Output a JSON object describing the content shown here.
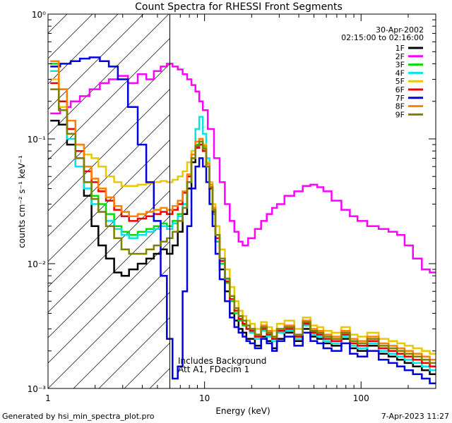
{
  "chart_data": {
    "type": "line",
    "title": "Count Spectra for RHESSI Front Segments",
    "xlabel": "Energy (keV)",
    "ylabel": "counts cm⁻² s⁻¹ keV⁻¹",
    "xscale": "log",
    "yscale": "log",
    "xlim": [
      1,
      300
    ],
    "ylim": [
      0.001,
      1
    ],
    "x_ticks": [
      {
        "value": 1,
        "label": "1"
      },
      {
        "value": 10,
        "label": "10"
      },
      {
        "value": 100,
        "label": "100"
      }
    ],
    "y_ticks": [
      {
        "value": 0.001,
        "label": "10⁻³"
      },
      {
        "value": 0.01,
        "label": "10⁻²"
      },
      {
        "value": 0.1,
        "label": "10⁻¹"
      },
      {
        "value": 1,
        "label": "10⁰"
      }
    ],
    "annotations": {
      "date": "30-Apr-2002",
      "time_range": "02:15:00 to 02:16:00",
      "background_note": "Includes Background",
      "atten_note": "Att A1, FDecim 1",
      "threshold_energy_keV": 6,
      "hatch_xlim": [
        1,
        6
      ]
    },
    "legend": {
      "placement": "top-right"
    },
    "series": [
      {
        "name": "1F",
        "color": "#000000",
        "x": [
          1.1,
          1.25,
          1.4,
          1.6,
          1.8,
          2.0,
          2.2,
          2.5,
          2.8,
          3.1,
          3.5,
          4.0,
          4.5,
          5.0,
          5.5,
          6.0,
          6.5,
          7.0,
          7.5,
          8.0,
          8.5,
          9.0,
          9.5,
          10.0,
          10.5,
          11.0,
          11.5,
          12.0,
          13.0,
          14.0,
          15.0,
          16.0,
          17.0,
          18.0,
          19.0,
          20.0,
          22,
          24,
          26,
          28,
          30,
          35,
          40,
          45,
          50,
          55,
          60,
          70,
          80,
          90,
          100,
          120,
          140,
          160,
          180,
          200,
          230,
          260,
          290
        ],
        "y": [
          0.14,
          0.13,
          0.09,
          0.06,
          0.035,
          0.02,
          0.014,
          0.011,
          0.0085,
          0.008,
          0.009,
          0.01,
          0.011,
          0.012,
          0.013,
          0.012,
          0.014,
          0.018,
          0.025,
          0.04,
          0.065,
          0.085,
          0.09,
          0.08,
          0.06,
          0.04,
          0.025,
          0.015,
          0.009,
          0.006,
          0.004,
          0.0035,
          0.003,
          0.0028,
          0.0025,
          0.0025,
          0.0022,
          0.0026,
          0.0024,
          0.0021,
          0.0025,
          0.0028,
          0.0024,
          0.003,
          0.0026,
          0.0025,
          0.0023,
          0.0022,
          0.0025,
          0.0021,
          0.002,
          0.0022,
          0.0019,
          0.0018,
          0.0017,
          0.0016,
          0.0015,
          0.0014,
          0.0013
        ]
      },
      {
        "name": "2F",
        "color": "#ff00ff",
        "x": [
          1.1,
          1.3,
          1.5,
          1.7,
          2.0,
          2.3,
          2.6,
          3.0,
          3.5,
          4.0,
          4.5,
          5.0,
          5.5,
          6.0,
          6.5,
          7.0,
          7.5,
          8.0,
          8.5,
          9.0,
          9.5,
          10.0,
          11.0,
          12.0,
          13.0,
          14.0,
          15.0,
          16.0,
          17.0,
          18.0,
          20.0,
          22,
          24,
          26,
          28,
          30,
          35,
          40,
          45,
          50,
          55,
          60,
          70,
          80,
          90,
          100,
          120,
          140,
          160,
          180,
          200,
          230,
          260,
          290
        ],
        "y": [
          0.16,
          0.18,
          0.2,
          0.22,
          0.25,
          0.28,
          0.3,
          0.32,
          0.28,
          0.33,
          0.3,
          0.35,
          0.38,
          0.4,
          0.38,
          0.36,
          0.33,
          0.3,
          0.27,
          0.24,
          0.2,
          0.17,
          0.12,
          0.07,
          0.045,
          0.03,
          0.022,
          0.018,
          0.015,
          0.014,
          0.016,
          0.019,
          0.022,
          0.025,
          0.028,
          0.03,
          0.035,
          0.038,
          0.042,
          0.043,
          0.041,
          0.038,
          0.032,
          0.027,
          0.024,
          0.022,
          0.02,
          0.019,
          0.018,
          0.017,
          0.014,
          0.011,
          0.009,
          0.0085
        ]
      },
      {
        "name": "3F",
        "color": "#00dd00",
        "x": [
          1.1,
          1.25,
          1.4,
          1.6,
          1.8,
          2.0,
          2.2,
          2.5,
          2.8,
          3.1,
          3.5,
          4.0,
          4.5,
          5.0,
          5.5,
          6.0,
          6.5,
          7.0,
          7.5,
          8.0,
          8.5,
          9.0,
          9.5,
          10.0,
          10.5,
          11.0,
          11.5,
          12.0,
          13.0,
          14.0,
          15.0,
          16.0,
          17.0,
          18.0,
          19.0,
          20.0,
          22,
          24,
          26,
          28,
          30,
          35,
          40,
          45,
          50,
          55,
          60,
          70,
          80,
          90,
          100,
          120,
          140,
          160,
          180,
          200,
          230,
          260,
          290
        ],
        "y": [
          0.4,
          0.25,
          0.12,
          0.07,
          0.045,
          0.035,
          0.03,
          0.025,
          0.02,
          0.018,
          0.017,
          0.018,
          0.019,
          0.02,
          0.021,
          0.02,
          0.022,
          0.025,
          0.03,
          0.045,
          0.07,
          0.09,
          0.1,
          0.085,
          0.06,
          0.04,
          0.025,
          0.015,
          0.01,
          0.007,
          0.005,
          0.004,
          0.0035,
          0.0032,
          0.003,
          0.0028,
          0.0026,
          0.003,
          0.0027,
          0.0025,
          0.0029,
          0.003,
          0.0026,
          0.0033,
          0.0028,
          0.0027,
          0.0025,
          0.0024,
          0.0027,
          0.0023,
          0.0022,
          0.0024,
          0.0021,
          0.002,
          0.0019,
          0.0018,
          0.0017,
          0.0016,
          0.0015
        ]
      },
      {
        "name": "4F",
        "color": "#00e5e5",
        "x": [
          1.1,
          1.25,
          1.4,
          1.6,
          1.8,
          2.0,
          2.2,
          2.5,
          2.8,
          3.1,
          3.5,
          4.0,
          4.5,
          5.0,
          5.5,
          6.0,
          6.5,
          7.0,
          7.5,
          8.0,
          8.5,
          9.0,
          9.5,
          10.0,
          10.5,
          11.0,
          11.5,
          12.0,
          13.0,
          14.0,
          15.0,
          16.0,
          17.0,
          18.0,
          19.0,
          20.0,
          22,
          24,
          26,
          28,
          30,
          35,
          40,
          45,
          50,
          55,
          60,
          70,
          80,
          90,
          100,
          120,
          140,
          160,
          180,
          200,
          230,
          260,
          290
        ],
        "y": [
          0.35,
          0.2,
          0.1,
          0.06,
          0.04,
          0.03,
          0.026,
          0.022,
          0.019,
          0.017,
          0.016,
          0.017,
          0.018,
          0.019,
          0.02,
          0.019,
          0.021,
          0.024,
          0.03,
          0.05,
          0.08,
          0.12,
          0.15,
          0.11,
          0.07,
          0.045,
          0.028,
          0.017,
          0.011,
          0.0075,
          0.0052,
          0.0042,
          0.0036,
          0.0033,
          0.003,
          0.0028,
          0.0025,
          0.0029,
          0.0026,
          0.0024,
          0.0028,
          0.0029,
          0.0025,
          0.0032,
          0.0027,
          0.0026,
          0.0024,
          0.0023,
          0.0026,
          0.0022,
          0.0021,
          0.0023,
          0.002,
          0.0019,
          0.0018,
          0.0017,
          0.0016,
          0.0015,
          0.0014
        ]
      },
      {
        "name": "5F",
        "color": "#e8c800",
        "x": [
          1.1,
          1.25,
          1.4,
          1.6,
          1.8,
          2.0,
          2.2,
          2.5,
          2.8,
          3.1,
          3.5,
          4.0,
          4.5,
          5.0,
          5.5,
          6.0,
          6.5,
          7.0,
          7.5,
          8.0,
          8.5,
          9.0,
          9.5,
          10.0,
          10.5,
          11.0,
          11.5,
          12.0,
          13.0,
          14.0,
          15.0,
          16.0,
          17.0,
          18.0,
          19.0,
          20.0,
          22,
          24,
          26,
          28,
          30,
          35,
          40,
          45,
          50,
          55,
          60,
          70,
          80,
          90,
          100,
          120,
          140,
          160,
          180,
          200,
          230,
          260,
          290
        ],
        "y": [
          0.3,
          0.18,
          0.12,
          0.09,
          0.075,
          0.07,
          0.06,
          0.05,
          0.045,
          0.042,
          0.042,
          0.043,
          0.044,
          0.045,
          0.046,
          0.045,
          0.047,
          0.05,
          0.055,
          0.065,
          0.08,
          0.095,
          0.1,
          0.09,
          0.065,
          0.045,
          0.03,
          0.02,
          0.013,
          0.009,
          0.0065,
          0.005,
          0.0042,
          0.0038,
          0.0035,
          0.0033,
          0.003,
          0.0034,
          0.0031,
          0.0029,
          0.0033,
          0.0035,
          0.003,
          0.0037,
          0.0032,
          0.0031,
          0.0029,
          0.0028,
          0.0031,
          0.0027,
          0.0026,
          0.0028,
          0.0025,
          0.0024,
          0.0023,
          0.0022,
          0.0021,
          0.002,
          0.0019
        ]
      },
      {
        "name": "6F",
        "color": "#ee0000",
        "x": [
          1.1,
          1.25,
          1.4,
          1.6,
          1.8,
          2.0,
          2.2,
          2.5,
          2.8,
          3.1,
          3.5,
          4.0,
          4.5,
          5.0,
          5.5,
          6.0,
          6.5,
          7.0,
          7.5,
          8.0,
          8.5,
          9.0,
          9.5,
          10.0,
          10.5,
          11.0,
          11.5,
          12.0,
          13.0,
          14.0,
          15.0,
          16.0,
          17.0,
          18.0,
          19.0,
          20.0,
          22,
          24,
          26,
          28,
          30,
          35,
          40,
          45,
          50,
          55,
          60,
          70,
          80,
          90,
          100,
          120,
          140,
          160,
          180,
          200,
          230,
          260,
          290
        ],
        "y": [
          0.28,
          0.2,
          0.12,
          0.08,
          0.055,
          0.045,
          0.038,
          0.032,
          0.027,
          0.024,
          0.022,
          0.023,
          0.024,
          0.025,
          0.026,
          0.025,
          0.027,
          0.03,
          0.037,
          0.05,
          0.07,
          0.085,
          0.09,
          0.08,
          0.06,
          0.04,
          0.026,
          0.016,
          0.0105,
          0.0072,
          0.0052,
          0.0042,
          0.0036,
          0.0033,
          0.003,
          0.0029,
          0.0026,
          0.003,
          0.0027,
          0.0025,
          0.0029,
          0.003,
          0.0026,
          0.0033,
          0.0028,
          0.0027,
          0.0025,
          0.0024,
          0.0027,
          0.0023,
          0.0022,
          0.0024,
          0.0021,
          0.002,
          0.0019,
          0.0018,
          0.0017,
          0.0016,
          0.0015
        ]
      },
      {
        "name": "7F",
        "color": "#0000dd",
        "x": [
          1.1,
          1.3,
          1.5,
          1.7,
          2.0,
          2.3,
          2.6,
          3.0,
          3.5,
          4.0,
          4.5,
          5.0,
          5.5,
          6.0,
          6.5,
          7.0,
          7.5,
          8.0,
          8.5,
          9.0,
          9.5,
          10.0,
          10.5,
          11.0,
          11.5,
          12.0,
          13.0,
          14.0,
          15.0,
          16.0,
          17.0,
          18.0,
          19.0,
          20.0,
          22,
          24,
          26,
          28,
          30,
          35,
          40,
          45,
          50,
          55,
          60,
          70,
          80,
          90,
          100,
          120,
          140,
          160,
          180,
          200,
          230,
          260,
          290
        ],
        "y": [
          0.38,
          0.4,
          0.42,
          0.44,
          0.45,
          0.42,
          0.38,
          0.3,
          0.18,
          0.09,
          0.045,
          0.022,
          0.008,
          0.0025,
          0.0012,
          0.0015,
          0.006,
          0.02,
          0.04,
          0.06,
          0.07,
          0.06,
          0.045,
          0.03,
          0.02,
          0.012,
          0.0075,
          0.005,
          0.0037,
          0.0031,
          0.0028,
          0.0026,
          0.0024,
          0.0023,
          0.0021,
          0.0025,
          0.0023,
          0.002,
          0.0024,
          0.0026,
          0.0022,
          0.0028,
          0.0024,
          0.0023,
          0.0021,
          0.002,
          0.0023,
          0.0019,
          0.0018,
          0.002,
          0.0017,
          0.0016,
          0.0015,
          0.0014,
          0.0013,
          0.0012,
          0.0011
        ]
      },
      {
        "name": "8F",
        "color": "#ff8000",
        "x": [
          1.1,
          1.25,
          1.4,
          1.6,
          1.8,
          2.0,
          2.2,
          2.5,
          2.8,
          3.1,
          3.5,
          4.0,
          4.5,
          5.0,
          5.5,
          6.0,
          6.5,
          7.0,
          7.5,
          8.0,
          8.5,
          9.0,
          9.5,
          10.0,
          10.5,
          11.0,
          11.5,
          12.0,
          13.0,
          14.0,
          15.0,
          16.0,
          17.0,
          18.0,
          19.0,
          20.0,
          22,
          24,
          26,
          28,
          30,
          35,
          40,
          45,
          50,
          55,
          60,
          70,
          80,
          90,
          100,
          120,
          140,
          160,
          180,
          200,
          230,
          260,
          290
        ],
        "y": [
          0.42,
          0.25,
          0.14,
          0.09,
          0.06,
          0.048,
          0.04,
          0.034,
          0.029,
          0.026,
          0.024,
          0.025,
          0.026,
          0.027,
          0.028,
          0.027,
          0.029,
          0.032,
          0.038,
          0.052,
          0.075,
          0.095,
          0.1,
          0.088,
          0.063,
          0.043,
          0.028,
          0.017,
          0.011,
          0.0076,
          0.0055,
          0.0044,
          0.0038,
          0.0035,
          0.0032,
          0.003,
          0.0027,
          0.0032,
          0.0029,
          0.0026,
          0.003,
          0.0032,
          0.0027,
          0.0035,
          0.003,
          0.0029,
          0.0027,
          0.0026,
          0.0029,
          0.0025,
          0.0024,
          0.0026,
          0.0023,
          0.0022,
          0.0021,
          0.002,
          0.0019,
          0.0018,
          0.0017
        ]
      },
      {
        "name": "9F",
        "color": "#808000",
        "x": [
          1.1,
          1.25,
          1.4,
          1.6,
          1.8,
          2.0,
          2.2,
          2.5,
          2.8,
          3.1,
          3.5,
          4.0,
          4.5,
          5.0,
          5.5,
          6.0,
          6.5,
          7.0,
          7.5,
          8.0,
          8.5,
          9.0,
          9.5,
          10.0,
          10.5,
          11.0,
          11.5,
          12.0,
          13.0,
          14.0,
          15.0,
          16.0,
          17.0,
          18.0,
          19.0,
          20.0,
          22,
          24,
          26,
          28,
          30,
          35,
          40,
          45,
          50,
          55,
          60,
          70,
          80,
          90,
          100,
          120,
          140,
          160,
          180,
          200,
          230,
          260,
          290
        ],
        "y": [
          0.25,
          0.17,
          0.11,
          0.07,
          0.045,
          0.033,
          0.026,
          0.02,
          0.016,
          0.013,
          0.012,
          0.012,
          0.013,
          0.014,
          0.015,
          0.016,
          0.018,
          0.022,
          0.028,
          0.045,
          0.07,
          0.088,
          0.095,
          0.083,
          0.06,
          0.041,
          0.027,
          0.017,
          0.011,
          0.0076,
          0.0055,
          0.0044,
          0.0038,
          0.0035,
          0.0032,
          0.003,
          0.0027,
          0.0031,
          0.0028,
          0.0026,
          0.003,
          0.0031,
          0.0027,
          0.0034,
          0.0029,
          0.0028,
          0.0026,
          0.0025,
          0.0028,
          0.0024,
          0.0023,
          0.0025,
          0.0022,
          0.0021,
          0.002,
          0.0019,
          0.0018,
          0.0017,
          0.0016
        ]
      }
    ]
  },
  "footer": {
    "generated_by": "Generated by hsi_min_spectra_plot.pro",
    "timestamp": "7-Apr-2023 11:27"
  }
}
